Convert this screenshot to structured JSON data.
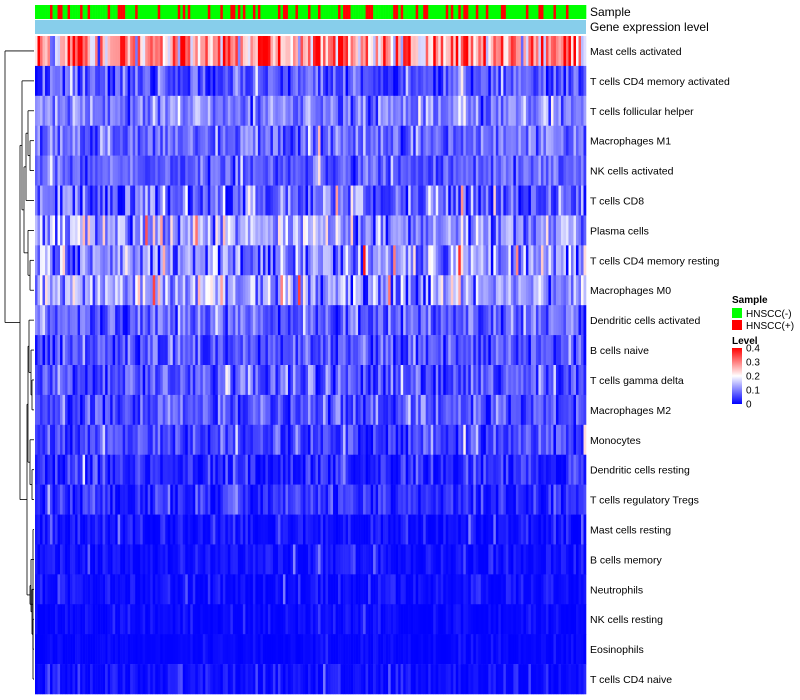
{
  "chart_data": {
    "type": "heatmap",
    "annotation_titles": {
      "sample": "Sample",
      "gene_expression": "Gene expression level"
    },
    "rows": [
      {
        "label": "Mast cells activated",
        "mean": 0.28,
        "spread": 0.14
      },
      {
        "label": "T cells CD4 memory activated",
        "mean": 0.06,
        "spread": 0.07
      },
      {
        "label": "T cells follicular helper",
        "mean": 0.1,
        "spread": 0.06
      },
      {
        "label": "Macrophages M1",
        "mean": 0.08,
        "spread": 0.06
      },
      {
        "label": "NK cells activated",
        "mean": 0.07,
        "spread": 0.05
      },
      {
        "label": "T cells CD8",
        "mean": 0.07,
        "spread": 0.09
      },
      {
        "label": "Plasma cells",
        "mean": 0.12,
        "spread": 0.1
      },
      {
        "label": "T cells CD4 memory resting",
        "mean": 0.11,
        "spread": 0.1
      },
      {
        "label": "Macrophages M0",
        "mean": 0.13,
        "spread": 0.1
      },
      {
        "label": "Dendritic cells activated",
        "mean": 0.07,
        "spread": 0.06
      },
      {
        "label": "B cells naive",
        "mean": 0.06,
        "spread": 0.06
      },
      {
        "label": "T cells gamma delta",
        "mean": 0.06,
        "spread": 0.07
      },
      {
        "label": "Macrophages M2",
        "mean": 0.06,
        "spread": 0.06
      },
      {
        "label": "Monocytes",
        "mean": 0.05,
        "spread": 0.05
      },
      {
        "label": "Dendritic cells resting",
        "mean": 0.03,
        "spread": 0.05
      },
      {
        "label": "T cells regulatory  Tregs",
        "mean": 0.03,
        "spread": 0.05
      },
      {
        "label": "Mast cells resting",
        "mean": 0.01,
        "spread": 0.04
      },
      {
        "label": "B cells memory",
        "mean": 0.01,
        "spread": 0.03
      },
      {
        "label": "Neutrophils",
        "mean": 0.01,
        "spread": 0.03
      },
      {
        "label": "NK cells resting",
        "mean": 0.005,
        "spread": 0.02
      },
      {
        "label": "Eosinophils",
        "mean": 0.003,
        "spread": 0.015
      },
      {
        "label": "T cells CD4 naive",
        "mean": 0.01,
        "spread": 0.03
      }
    ],
    "n_samples": 220,
    "hnscc_positive_fraction": 0.3,
    "value_range": [
      0,
      0.4
    ],
    "colors": {
      "low": "#0000ff",
      "mid": "#ffffff",
      "high": "#ff0000",
      "hnscc_neg": "#00ff00",
      "hnscc_pos": "#ff0000",
      "gene_expression_bar": "#87ceeb"
    },
    "legend": {
      "sample_title": "Sample",
      "sample_entries": [
        "HNSCC(-)",
        "HNSCC(+)"
      ],
      "level_title": "Level",
      "level_ticks": [
        "0.4",
        "0.3",
        "0.2",
        "0.1",
        "0"
      ]
    }
  }
}
